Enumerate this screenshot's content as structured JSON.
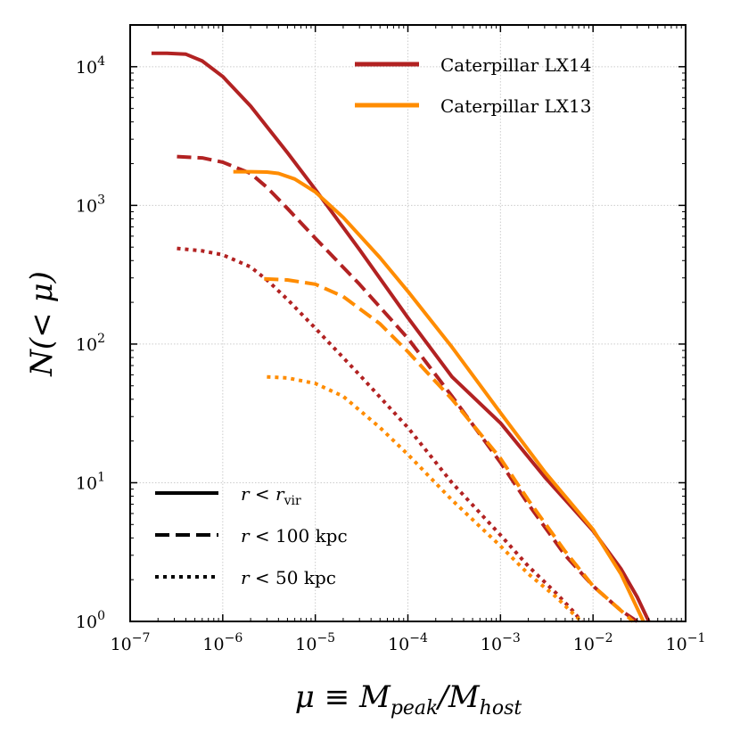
{
  "chart_data": {
    "type": "line",
    "xscale": "log",
    "yscale": "log",
    "xlim": [
      1e-07,
      0.1
    ],
    "ylim": [
      1,
      20000
    ],
    "grid": true,
    "xlabel": "μ ≡ M_peak/M_host",
    "ylabel": "N(< μ)",
    "xlabel_parts": {
      "main": "μ ≡ M",
      "sub1": "peak",
      "mid": "/M",
      "sub2": "host"
    },
    "ylabel_text": "N(< μ)",
    "x_ticks": [
      {
        "base": "10",
        "exp": "−7",
        "value": 1e-07
      },
      {
        "base": "10",
        "exp": "−6",
        "value": 1e-06
      },
      {
        "base": "10",
        "exp": "−5",
        "value": 1e-05
      },
      {
        "base": "10",
        "exp": "−4",
        "value": 0.0001
      },
      {
        "base": "10",
        "exp": "−3",
        "value": 0.001
      },
      {
        "base": "10",
        "exp": "−2",
        "value": 0.01
      },
      {
        "base": "10",
        "exp": "−1",
        "value": 0.1
      }
    ],
    "y_ticks": [
      {
        "base": "10",
        "exp": "0",
        "value": 1
      },
      {
        "base": "10",
        "exp": "1",
        "value": 10
      },
      {
        "base": "10",
        "exp": "2",
        "value": 100
      },
      {
        "base": "10",
        "exp": "3",
        "value": 1000
      },
      {
        "base": "10",
        "exp": "4",
        "value": 10000
      }
    ],
    "colors": {
      "LX14": "#b22222",
      "LX13": "#ff8c00"
    },
    "legend_simulations": {
      "position": "top-right",
      "entries": [
        {
          "label": "Caterpillar LX14",
          "color": "#b22222"
        },
        {
          "label": "Caterpillar LX13",
          "color": "#ff8c00"
        }
      ]
    },
    "legend_radius": {
      "position": "bottom-left",
      "entries": [
        {
          "style": "solid",
          "label_r": "r",
          "label_rest": " < ",
          "label_sub_r": "r",
          "label_sub": "vir",
          "label_tail": ""
        },
        {
          "style": "dashed",
          "label_r": "r",
          "label_rest": " < 100 kpc",
          "label_sub_r": "",
          "label_sub": "",
          "label_tail": ""
        },
        {
          "style": "dotted",
          "label_r": "r",
          "label_rest": " < 50 kpc",
          "label_sub_r": "",
          "label_sub": "",
          "label_tail": ""
        }
      ]
    },
    "series": [
      {
        "simulation": "LX14",
        "radius": "r < r_vir",
        "style": "solid",
        "color": "#b22222",
        "x": [
          1.7e-07,
          2.5e-07,
          4e-07,
          6e-07,
          1e-06,
          2e-06,
          5e-06,
          1e-05,
          3e-05,
          0.0001,
          0.0003,
          0.001,
          0.003,
          0.01,
          0.02,
          0.03,
          0.04
        ],
        "y": [
          12500,
          12500,
          12300,
          11000,
          8500,
          5200,
          2400,
          1300,
          480,
          155,
          58,
          27,
          11,
          4.5,
          2.4,
          1.5,
          1.0
        ]
      },
      {
        "simulation": "LX14",
        "radius": "r < 100 kpc",
        "style": "dashed",
        "color": "#b22222",
        "x": [
          3.2e-07,
          6e-07,
          1e-06,
          2e-06,
          3e-06,
          5e-06,
          1e-05,
          3e-05,
          0.0001,
          0.0003,
          0.001,
          0.002,
          0.005,
          0.01,
          0.02,
          0.03
        ],
        "y": [
          2250,
          2200,
          2050,
          1700,
          1350,
          950,
          580,
          270,
          110,
          42,
          14,
          7,
          3,
          1.8,
          1.2,
          1.0
        ]
      },
      {
        "simulation": "LX14",
        "radius": "r < 50 kpc",
        "style": "dotted",
        "color": "#b22222",
        "x": [
          3.2e-07,
          6e-07,
          1e-06,
          2e-06,
          3e-06,
          5e-06,
          1e-05,
          3e-05,
          0.0001,
          0.0003,
          0.001,
          0.002,
          0.004,
          0.006,
          0.0075
        ],
        "y": [
          490,
          470,
          440,
          360,
          290,
          210,
          130,
          60,
          25,
          10,
          4.2,
          2.5,
          1.6,
          1.2,
          1.0
        ]
      },
      {
        "simulation": "LX13",
        "radius": "r < r_vir",
        "style": "solid",
        "color": "#ff8c00",
        "x": [
          1.3e-06,
          2e-06,
          3e-06,
          4e-06,
          6e-06,
          1e-05,
          2e-05,
          5e-05,
          0.0001,
          0.0003,
          0.001,
          0.003,
          0.01,
          0.02,
          0.035
        ],
        "y": [
          1750,
          1750,
          1740,
          1700,
          1550,
          1250,
          820,
          420,
          240,
          95,
          32,
          12,
          4.6,
          2.2,
          1.0
        ]
      },
      {
        "simulation": "LX13",
        "radius": "r < 100 kpc",
        "style": "dashed",
        "color": "#ff8c00",
        "x": [
          2.8e-06,
          5e-06,
          1e-05,
          2e-05,
          5e-05,
          0.0001,
          0.0003,
          0.001,
          0.002,
          0.005,
          0.01,
          0.02,
          0.027
        ],
        "y": [
          295,
          290,
          270,
          220,
          140,
          88,
          40,
          15,
          7.5,
          3.2,
          1.8,
          1.2,
          1.0
        ]
      },
      {
        "simulation": "LX13",
        "radius": "r < 50 kpc",
        "style": "dotted",
        "color": "#ff8c00",
        "x": [
          3e-06,
          5e-06,
          1e-05,
          2e-05,
          5e-05,
          0.0001,
          0.0003,
          0.001,
          0.002,
          0.004,
          0.006,
          0.0075
        ],
        "y": [
          58,
          57,
          52,
          42,
          25,
          16,
          7.5,
          3.5,
          2.2,
          1.5,
          1.15,
          1.0
        ]
      }
    ]
  }
}
